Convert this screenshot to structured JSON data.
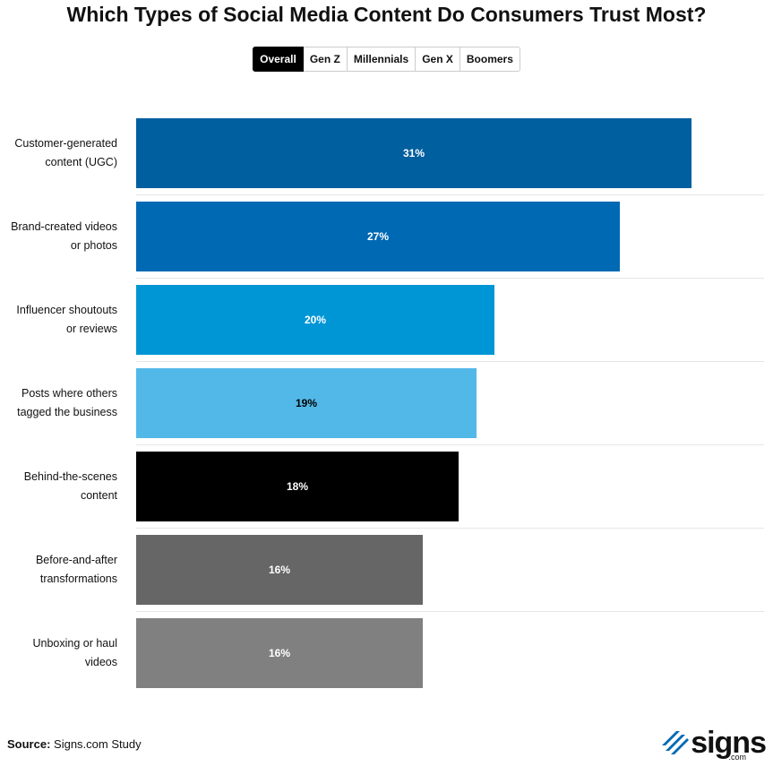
{
  "chart_data": {
    "type": "bar",
    "orientation": "horizontal",
    "title": "Which Types of Social Media Content Do Consumers Trust Most?",
    "tabs": [
      "Overall",
      "Gen Z",
      "Millennials",
      "Gen X",
      "Boomers"
    ],
    "active_tab": "Overall",
    "categories": [
      "Customer-generated content (UGC)",
      "Brand-created videos or photos",
      "Influencer shoutouts or reviews",
      "Posts where others tagged the business",
      "Behind-the-scenes content",
      "Before-and-after transformations",
      "Unboxing or haul videos"
    ],
    "values": [
      31,
      27,
      20,
      19,
      18,
      16,
      16
    ],
    "value_labels": [
      "31%",
      "27%",
      "20%",
      "19%",
      "18%",
      "16%",
      "16%"
    ],
    "colors": [
      "#005f9e",
      "#0069b4",
      "#0096d6",
      "#52b8e8",
      "#000000",
      "#666666",
      "#808080"
    ],
    "source_label": "Source:",
    "source": "Signs.com Study",
    "logo": {
      "text": "signs",
      "sub": ".com"
    }
  }
}
